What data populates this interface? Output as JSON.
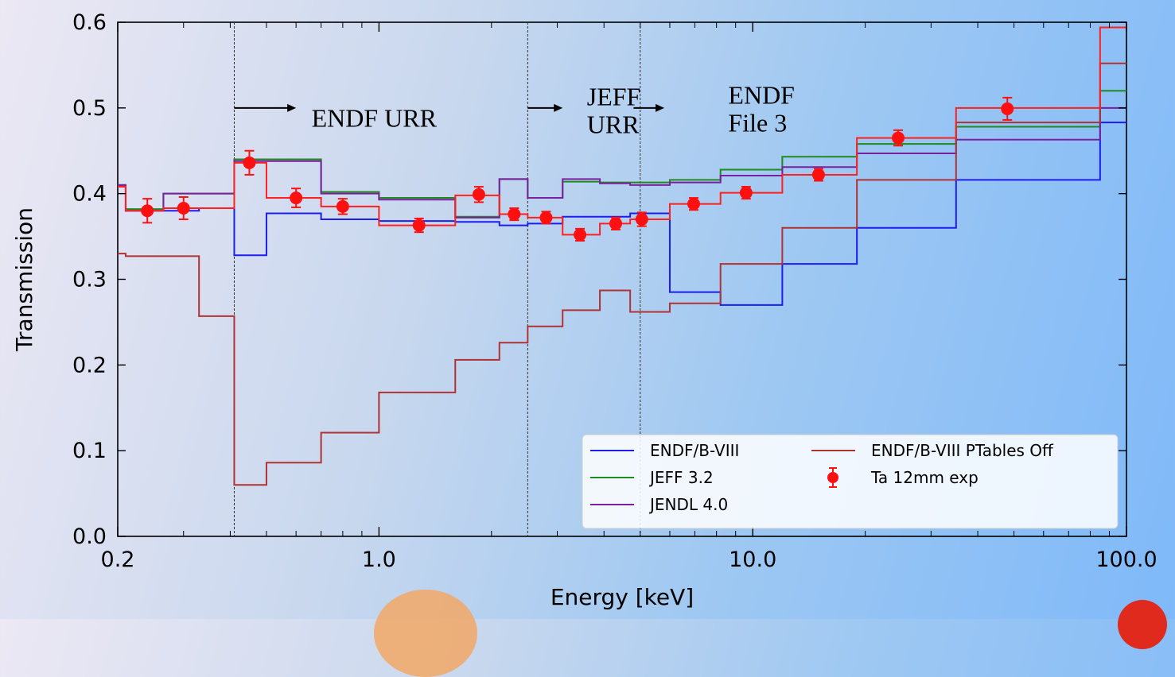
{
  "chart_data": {
    "type": "line",
    "xlabel": "Energy [keV]",
    "ylabel": "Transmission",
    "xscale": "log",
    "xlim": [
      0.2,
      100
    ],
    "ylim": [
      0.0,
      0.6
    ],
    "xticks": [
      {
        "value": 0.2,
        "label": "0.2"
      },
      {
        "value": 1.0,
        "label": "1.0"
      },
      {
        "value": 10.0,
        "label": "10.0"
      },
      {
        "value": 100.0,
        "label": "100.0"
      }
    ],
    "yticks": [
      {
        "value": 0.0,
        "label": "0.0"
      },
      {
        "value": 0.1,
        "label": "0.1"
      },
      {
        "value": 0.2,
        "label": "0.2"
      },
      {
        "value": 0.3,
        "label": "0.3"
      },
      {
        "value": 0.4,
        "label": "0.4"
      },
      {
        "value": 0.5,
        "label": "0.5"
      },
      {
        "value": 0.6,
        "label": "0.6"
      }
    ],
    "vlines": [
      0.41,
      2.5,
      5.0
    ],
    "annotations": [
      {
        "lines": [
          "ENDF URR"
        ],
        "x": 0.66,
        "y": 0.478
      },
      {
        "lines": [
          "JEFF",
          "URR"
        ],
        "x": 3.6,
        "y": 0.503
      },
      {
        "lines": [
          "ENDF",
          "File 3"
        ],
        "x": 8.6,
        "y": 0.505
      }
    ],
    "arrows": [
      {
        "x0": 0.41,
        "x1": 0.6,
        "y": 0.5
      },
      {
        "x0": 2.5,
        "x1": 3.1,
        "y": 0.5
      },
      {
        "x0": 4.8,
        "x1": 5.8,
        "y": 0.5
      }
    ],
    "series": [
      {
        "name": "ENDF/B-VIII",
        "color": "#1d1dee",
        "kind": "step",
        "x": [
          0.2,
          0.21,
          0.265,
          0.33,
          0.41,
          0.5,
          0.7,
          1.0,
          1.6,
          2.1,
          2.5,
          3.1,
          3.9,
          4.7,
          6.0,
          8.2,
          12.0,
          19.0,
          35.0,
          85.0,
          100.0
        ],
        "y": [
          0.41,
          0.38,
          0.38,
          0.383,
          0.328,
          0.377,
          0.37,
          0.368,
          0.367,
          0.363,
          0.365,
          0.373,
          0.373,
          0.377,
          0.285,
          0.27,
          0.318,
          0.36,
          0.416,
          0.483,
          0.556
        ]
      },
      {
        "name": "JEFF 3.2",
        "color": "#1f8a1f",
        "kind": "step",
        "x": [
          0.2,
          0.21,
          0.265,
          0.33,
          0.41,
          0.5,
          0.7,
          1.0,
          1.6,
          2.1,
          2.5,
          3.1,
          3.9,
          4.7,
          6.0,
          8.2,
          12.0,
          19.0,
          35.0,
          85.0,
          100.0
        ],
        "y": [
          0.41,
          0.382,
          0.4,
          0.4,
          0.44,
          0.44,
          0.402,
          0.395,
          0.373,
          0.417,
          0.395,
          0.414,
          0.413,
          0.413,
          0.416,
          0.428,
          0.443,
          0.458,
          0.478,
          0.52,
          0.57
        ]
      },
      {
        "name": "JENDL 4.0",
        "color": "#7a1fa0",
        "kind": "step",
        "x": [
          0.2,
          0.21,
          0.265,
          0.33,
          0.41,
          0.5,
          0.7,
          1.0,
          1.6,
          2.1,
          2.5,
          3.1,
          3.9,
          4.7,
          6.0,
          8.2,
          12.0,
          19.0,
          35.0,
          85.0,
          100.0
        ],
        "y": [
          0.41,
          0.38,
          0.4,
          0.4,
          0.438,
          0.438,
          0.4,
          0.393,
          0.372,
          0.417,
          0.395,
          0.417,
          0.412,
          0.41,
          0.413,
          0.421,
          0.431,
          0.447,
          0.463,
          0.5,
          0.57
        ]
      },
      {
        "name": "ENDF/B-VIII PTables Off",
        "color": "#b03232",
        "kind": "step",
        "x": [
          0.2,
          0.21,
          0.265,
          0.33,
          0.41,
          0.5,
          0.7,
          1.0,
          1.6,
          2.1,
          2.5,
          3.1,
          3.9,
          4.7,
          6.0,
          8.2,
          12.0,
          19.0,
          35.0,
          85.0,
          100.0
        ],
        "y": [
          0.33,
          0.327,
          0.327,
          0.257,
          0.06,
          0.086,
          0.121,
          0.168,
          0.206,
          0.226,
          0.245,
          0.264,
          0.287,
          0.262,
          0.272,
          0.318,
          0.36,
          0.416,
          0.483,
          0.552,
          0.552
        ]
      },
      {
        "name": "",
        "color": "#ff2020",
        "kind": "step",
        "x": [
          0.2,
          0.21,
          0.265,
          0.33,
          0.41,
          0.5,
          0.7,
          1.0,
          1.6,
          2.1,
          2.5,
          3.1,
          3.9,
          4.7,
          6.0,
          8.2,
          12.0,
          19.0,
          35.0,
          85.0,
          100.0
        ],
        "y": [
          0.408,
          0.38,
          0.383,
          0.383,
          0.436,
          0.395,
          0.385,
          0.363,
          0.398,
          0.376,
          0.372,
          0.352,
          0.365,
          0.37,
          0.388,
          0.401,
          0.422,
          0.465,
          0.5,
          0.594,
          0.594
        ]
      },
      {
        "name": "Ta 12mm exp",
        "color": "#ff1010",
        "kind": "errorbar",
        "x": [
          0.24,
          0.3,
          0.45,
          0.6,
          0.8,
          1.28,
          1.85,
          2.3,
          2.8,
          3.45,
          4.3,
          5.05,
          6.95,
          9.6,
          15.0,
          24.5,
          48.0
        ],
        "y": [
          0.38,
          0.383,
          0.436,
          0.395,
          0.385,
          0.363,
          0.399,
          0.376,
          0.372,
          0.352,
          0.365,
          0.37,
          0.388,
          0.401,
          0.422,
          0.465,
          0.499
        ],
        "err": [
          0.014,
          0.013,
          0.014,
          0.011,
          0.009,
          0.008,
          0.009,
          0.007,
          0.007,
          0.007,
          0.007,
          0.008,
          0.007,
          0.007,
          0.007,
          0.009,
          0.013
        ]
      }
    ],
    "legend": {
      "location": "lower-right",
      "columns": 2,
      "entries": [
        {
          "label": "ENDF/B-VIII",
          "color": "#1d1dee",
          "kind": "line"
        },
        {
          "label": "JEFF 3.2",
          "color": "#1f8a1f",
          "kind": "line"
        },
        {
          "label": "JENDL 4.0",
          "color": "#7a1fa0",
          "kind": "line"
        },
        {
          "label": "ENDF/B-VIII PTables Off",
          "color": "#b03232",
          "kind": "line"
        },
        {
          "label": "Ta 12mm exp",
          "color": "#ff1010",
          "kind": "errorbar"
        }
      ]
    }
  }
}
